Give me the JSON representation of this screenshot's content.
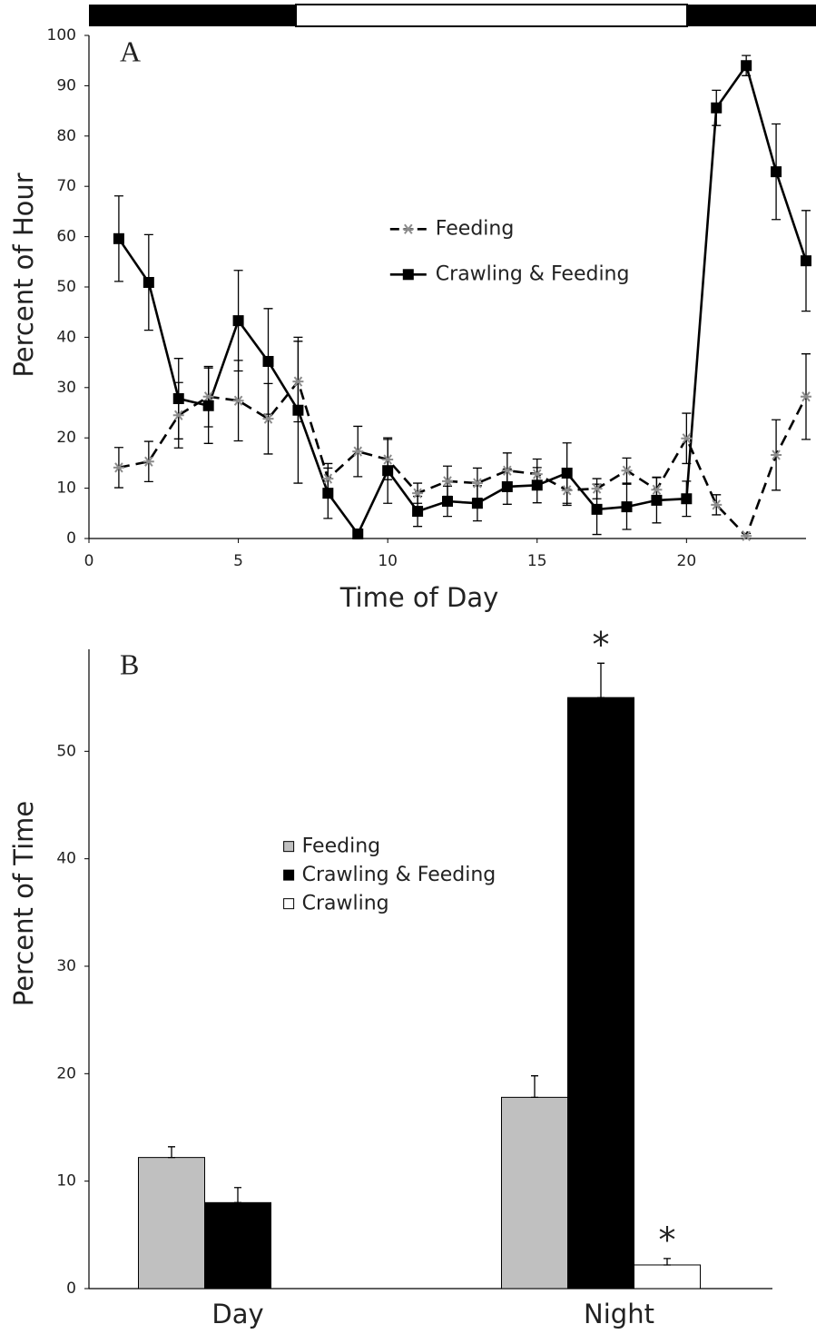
{
  "chart_data": [
    {
      "type": "line",
      "panel_label": "A",
      "x_label": "Time of Day",
      "y_label": "Percent of Hour",
      "x": [
        1,
        2,
        3,
        4,
        5,
        6,
        7,
        8,
        9,
        10,
        11,
        12,
        13,
        14,
        15,
        16,
        17,
        18,
        19,
        20,
        21,
        22,
        23,
        24
      ],
      "xlim": [
        0,
        24
      ],
      "xticks": [
        0,
        5,
        10,
        15,
        20
      ],
      "ylim": [
        0,
        100
      ],
      "yticks": [
        0,
        10,
        20,
        30,
        40,
        50,
        60,
        70,
        80,
        90,
        100
      ],
      "grid": false,
      "legend_position": "center",
      "series": [
        {
          "name": "Feeding",
          "color": "#000000",
          "marker_color": "#8c8c8c",
          "line_style": "dashed",
          "marker": "star",
          "values": [
            14.1,
            15.3,
            24.5,
            28.2,
            27.4,
            23.8,
            31.2,
            11.9,
            17.3,
            15.7,
            9,
            11.4,
            11,
            13.5,
            12.8,
            9.6,
            9.9,
            13.5,
            9.7,
            19.9,
            6.7,
            0.5,
            16.6,
            28.2
          ],
          "errors": [
            4,
            4,
            6.5,
            6,
            8,
            7,
            8,
            3,
            5,
            4,
            2,
            3,
            3,
            3.5,
            3,
            3,
            2,
            2.5,
            2.5,
            5,
            2,
            0.5,
            7,
            8.5
          ]
        },
        {
          "name": "Crawling & Feeding",
          "color": "#000000",
          "line_style": "solid",
          "marker": "square",
          "values": [
            59.6,
            50.9,
            27.8,
            26.4,
            43.3,
            35.2,
            25.5,
            9,
            0.9,
            13.5,
            5.4,
            7.4,
            7,
            10.3,
            10.6,
            13,
            5.8,
            6.3,
            7.6,
            7.9,
            85.6,
            94,
            72.9,
            55.2
          ],
          "errors": [
            8.5,
            9.5,
            8,
            7.5,
            10,
            10.5,
            14.5,
            5,
            0.5,
            6.5,
            3,
            3,
            3.5,
            3.5,
            3.5,
            6,
            5,
            4.5,
            4.5,
            3.5,
            3.5,
            2,
            9.5,
            10
          ]
        }
      ]
    },
    {
      "type": "bar",
      "panel_label": "B",
      "y_label": "Percent of Time",
      "categories": [
        "Day",
        "Night"
      ],
      "ylim": [
        0,
        60
      ],
      "yticks": [
        0,
        10,
        20,
        30,
        40,
        50
      ],
      "grid": false,
      "legend_position": "center",
      "series": [
        {
          "name": "Feeding",
          "color": "#c0c0c0",
          "values": [
            12.2,
            17.8
          ],
          "errors": [
            1,
            2
          ]
        },
        {
          "name": "Crawling & Feeding",
          "color": "#000000",
          "values": [
            8,
            55
          ],
          "errors": [
            1.4,
            3.2
          ]
        },
        {
          "name": "Crawling",
          "color": "#ffffff",
          "values": [
            null,
            2.2
          ],
          "errors": [
            null,
            0.6
          ]
        }
      ],
      "annotations": [
        {
          "text": "*",
          "series": "Crawling & Feeding",
          "category": "Night"
        },
        {
          "text": "*",
          "series": "Crawling",
          "category": "Night"
        }
      ]
    }
  ]
}
